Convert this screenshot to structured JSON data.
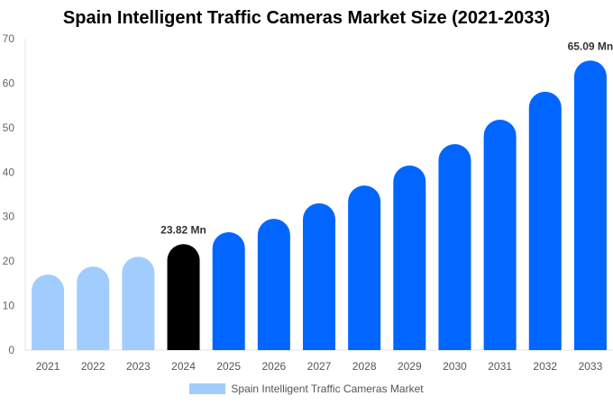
{
  "chart_data": {
    "type": "bar",
    "title": "Spain Intelligent Traffic Cameras Market Size (2021-2033)",
    "categories": [
      "2021",
      "2022",
      "2023",
      "2024",
      "2025",
      "2026",
      "2027",
      "2028",
      "2029",
      "2030",
      "2031",
      "2032",
      "2033"
    ],
    "series": [
      {
        "name": "Spain Intelligent Traffic Cameras Market",
        "values": [
          17.0,
          18.8,
          21.0,
          23.82,
          26.5,
          29.5,
          33.0,
          37.0,
          41.5,
          46.3,
          51.8,
          58.1,
          65.09
        ]
      }
    ],
    "data_labels": {
      "3": "23.82 Mn",
      "12": "65.09 Mn"
    },
    "ylim": [
      0,
      70
    ],
    "yticks": [
      0,
      10,
      20,
      30,
      40,
      50,
      60,
      70
    ],
    "xlabel": "",
    "ylabel": "",
    "grid": false,
    "legend_position": "bottom",
    "colors": {
      "historical": "#a0cdfd",
      "base_year": "#000000",
      "forecast": "#0066ff",
      "legend": "#a0cdfd"
    }
  }
}
